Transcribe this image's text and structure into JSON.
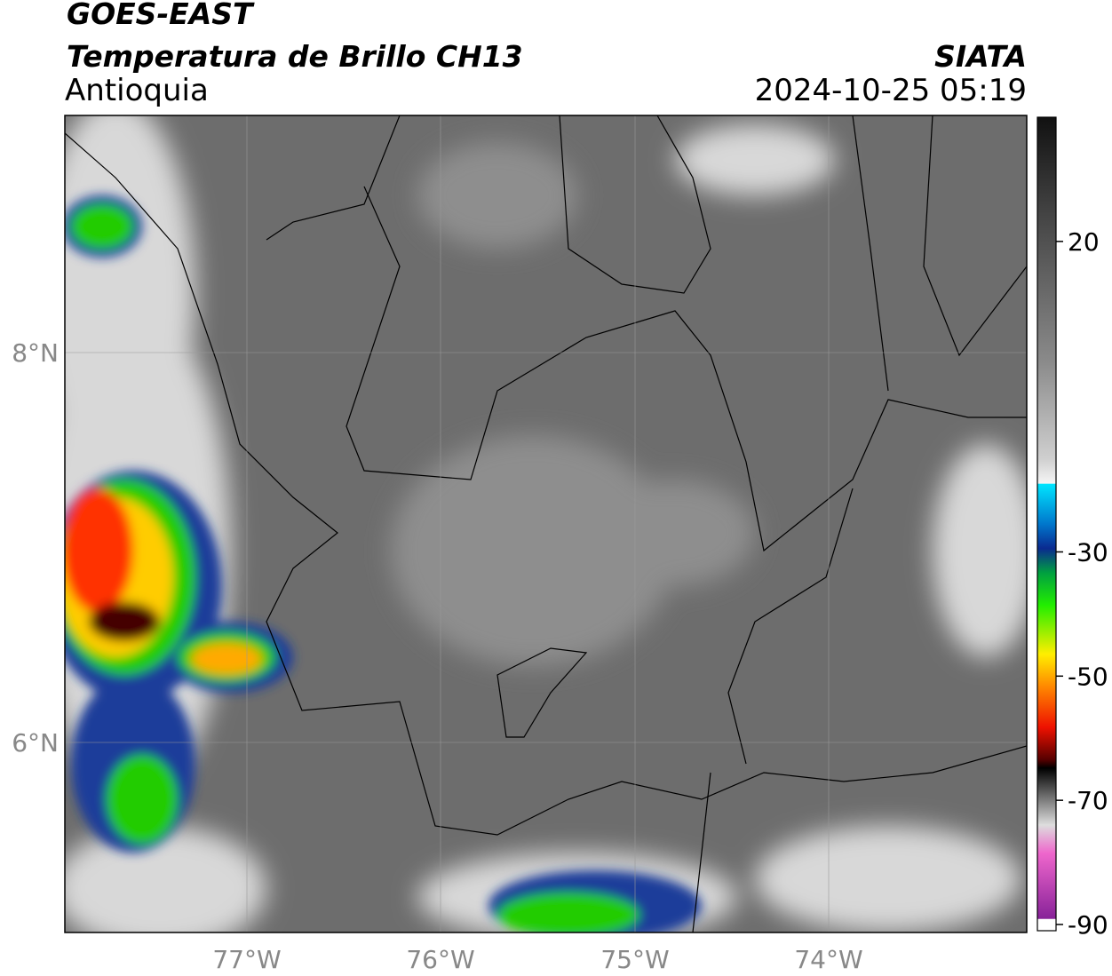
{
  "header": {
    "title": "GOES-EAST",
    "subtitle": "Temperatura de Brillo CH13",
    "region": "Antioquia",
    "source": "SIATA",
    "timestamp": "2024-10-25 05:19"
  },
  "map": {
    "lat_labels": [
      "8°N",
      "6°N"
    ],
    "lon_labels": [
      "77°W",
      "76°W",
      "75°W",
      "74°W"
    ]
  },
  "colorbar": {
    "range": [
      -91,
      40
    ],
    "ticks": [
      20,
      -30,
      -50,
      -70,
      -90
    ]
  }
}
